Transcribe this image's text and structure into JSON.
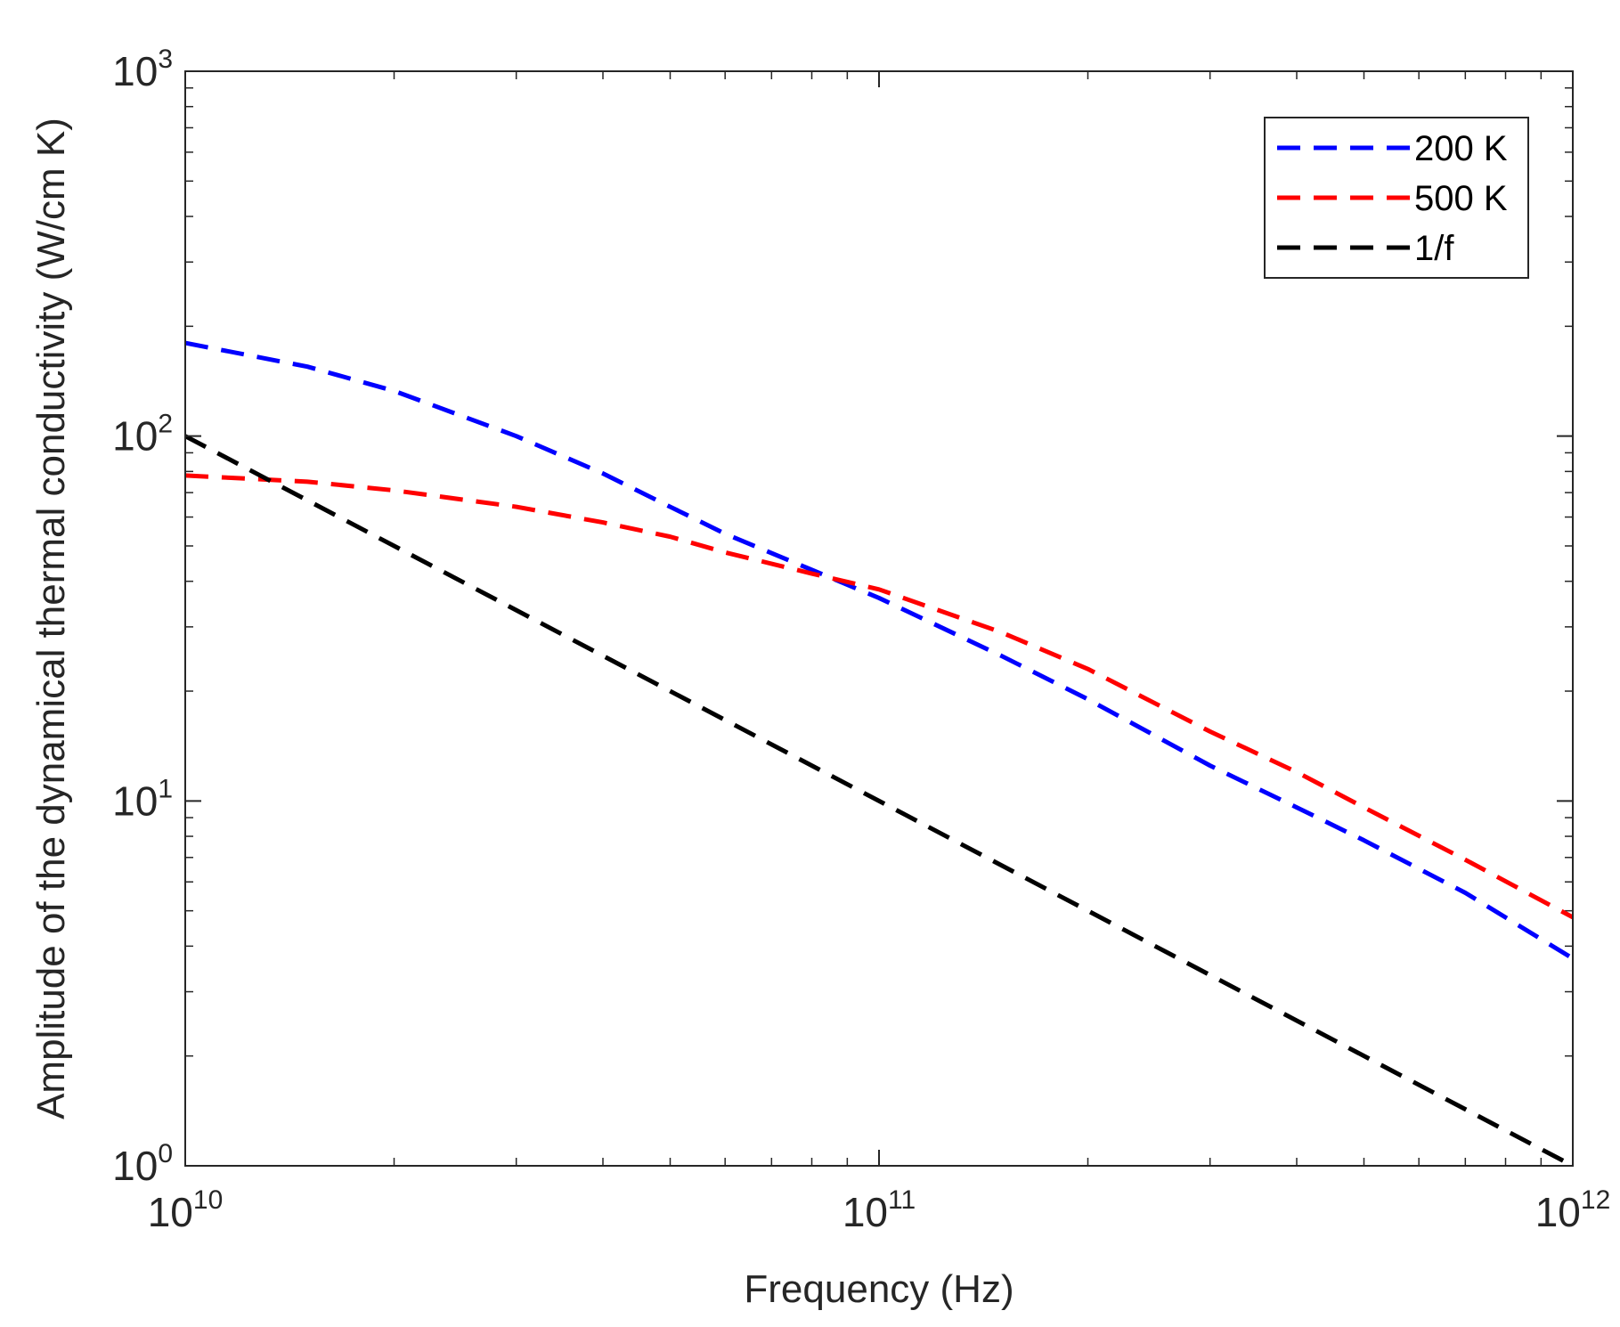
{
  "chart_data": {
    "type": "line",
    "xscale": "log",
    "yscale": "log",
    "xlabel": "Frequency (Hz)",
    "ylabel": "Amplitude of the dynamical thermal conductivity (W/cm K)",
    "xlim": [
      10000000000,
      1000000000000
    ],
    "ylim": [
      1,
      1000
    ],
    "x_ticks": [
      {
        "value": 10000000000,
        "base": "10",
        "exp": "10"
      },
      {
        "value": 100000000000,
        "base": "10",
        "exp": "11"
      },
      {
        "value": 1000000000000,
        "base": "10",
        "exp": "12"
      }
    ],
    "y_ticks": [
      {
        "value": 1,
        "base": "10",
        "exp": "0"
      },
      {
        "value": 10,
        "base": "10",
        "exp": "1"
      },
      {
        "value": 100,
        "base": "10",
        "exp": "2"
      },
      {
        "value": 1000,
        "base": "10",
        "exp": "3"
      }
    ],
    "legend_position": "top-right",
    "series": [
      {
        "name": "200 K",
        "color": "#0000ff",
        "x": [
          10000000000,
          15000000000,
          20000000000,
          30000000000,
          40000000000,
          50000000000,
          60000000000,
          80000000000,
          100000000000,
          150000000000,
          200000000000,
          300000000000,
          400000000000,
          500000000000,
          700000000000,
          1000000000000
        ],
        "y": [
          180,
          155,
          133,
          100,
          79,
          64,
          54,
          43,
          36,
          25,
          19,
          12.5,
          9.6,
          7.8,
          5.6,
          3.7
        ]
      },
      {
        "name": "500 K",
        "color": "#ff0000",
        "x": [
          10000000000,
          15000000000,
          20000000000,
          30000000000,
          40000000000,
          50000000000,
          60000000000,
          80000000000,
          100000000000,
          150000000000,
          200000000000,
          300000000000,
          400000000000,
          500000000000,
          700000000000,
          1000000000000
        ],
        "y": [
          78,
          75,
          71,
          64,
          58,
          53,
          48,
          42,
          38,
          29,
          23,
          15.5,
          12,
          9.6,
          6.9,
          4.8
        ]
      },
      {
        "name": "1/f",
        "color": "#000000",
        "x": [
          10000000000,
          1000000000000
        ],
        "y": [
          100,
          1
        ]
      }
    ]
  }
}
